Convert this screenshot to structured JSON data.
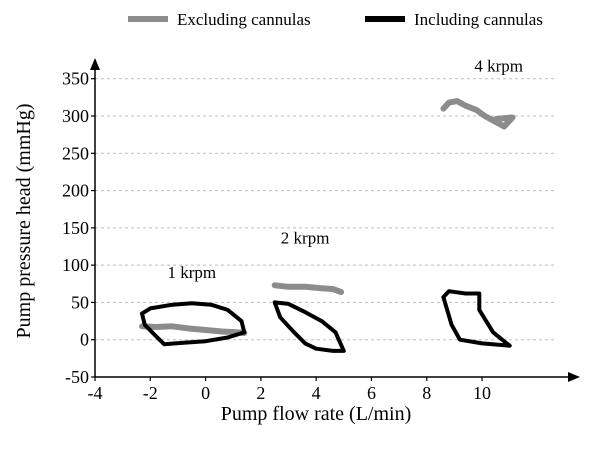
{
  "chart_data": {
    "type": "line",
    "title": "",
    "xlabel": "Pump flow rate (L/min)",
    "ylabel": "Pump pressure head (mmHg)",
    "xlim": [
      -4,
      13
    ],
    "ylim": [
      -50,
      355
    ],
    "xticks": [
      -4,
      -2,
      0,
      2,
      4,
      6,
      8,
      10
    ],
    "yticks": [
      -50,
      0,
      50,
      100,
      150,
      200,
      250,
      300,
      350
    ],
    "grid": "horizontal dashed",
    "legend_position": "top",
    "colors": {
      "excluding": "#8c8c8c",
      "including": "#000000"
    },
    "legend": [
      {
        "name": "Excluding cannulas",
        "color": "#8c8c8c"
      },
      {
        "name": "Including cannulas",
        "color": "#000000"
      }
    ],
    "annotations": [
      {
        "text": "1 krpm",
        "x": -0.5,
        "y": 83
      },
      {
        "text": "2 krpm",
        "x": 3.6,
        "y": 129
      },
      {
        "text": "4 krpm",
        "x": 10.6,
        "y": 360
      }
    ],
    "series": [
      {
        "name": "Excluding cannulas",
        "group": "excluding",
        "speed": "1 krpm",
        "x": [
          -2.3,
          -1.8,
          -1.2,
          -0.6,
          0,
          0.6,
          1.1,
          1.4
        ],
        "y": [
          18,
          17,
          18,
          15,
          13,
          11,
          10,
          9
        ]
      },
      {
        "name": "Including cannulas",
        "group": "including",
        "speed": "1 krpm",
        "closed": true,
        "x": [
          -2.3,
          -2.0,
          -1.2,
          -0.5,
          0.2,
          0.8,
          1.3,
          1.4,
          0.8,
          0,
          -0.8,
          -1.5,
          -1.8,
          -2.2,
          -2.3
        ],
        "y": [
          35,
          42,
          47,
          49,
          47,
          40,
          25,
          10,
          3,
          -2,
          -4,
          -6,
          5,
          20,
          35
        ]
      },
      {
        "name": "Excluding cannulas",
        "group": "excluding",
        "speed": "2 krpm",
        "x": [
          2.5,
          3.0,
          3.6,
          4.2,
          4.6,
          4.9
        ],
        "y": [
          73,
          71,
          71,
          69,
          68,
          64
        ]
      },
      {
        "name": "Including cannulas",
        "group": "including",
        "speed": "2 krpm",
        "closed": true,
        "x": [
          2.5,
          3.0,
          3.6,
          4.2,
          4.7,
          5.0,
          4.6,
          4.0,
          3.6,
          3.2,
          2.7,
          2.5
        ],
        "y": [
          50,
          48,
          37,
          25,
          10,
          -15,
          -15,
          -12,
          -5,
          10,
          30,
          50
        ]
      },
      {
        "name": "Excluding cannulas",
        "group": "excluding",
        "speed": "4 krpm",
        "x": [
          8.6,
          8.8,
          9.1,
          9.4,
          9.8,
          10.1,
          10.5,
          10.8,
          11.1,
          10.5
        ],
        "y": [
          310,
          318,
          320,
          314,
          308,
          300,
          292,
          286,
          298,
          296
        ]
      },
      {
        "name": "Including cannulas",
        "group": "including",
        "speed": "4 krpm",
        "closed": true,
        "x": [
          8.6,
          8.8,
          9.4,
          9.9,
          9.9,
          10.4,
          11.0,
          10.0,
          9.2,
          8.9,
          8.6
        ],
        "y": [
          57,
          65,
          62,
          62,
          40,
          10,
          -8,
          -5,
          0,
          20,
          57
        ]
      }
    ]
  }
}
